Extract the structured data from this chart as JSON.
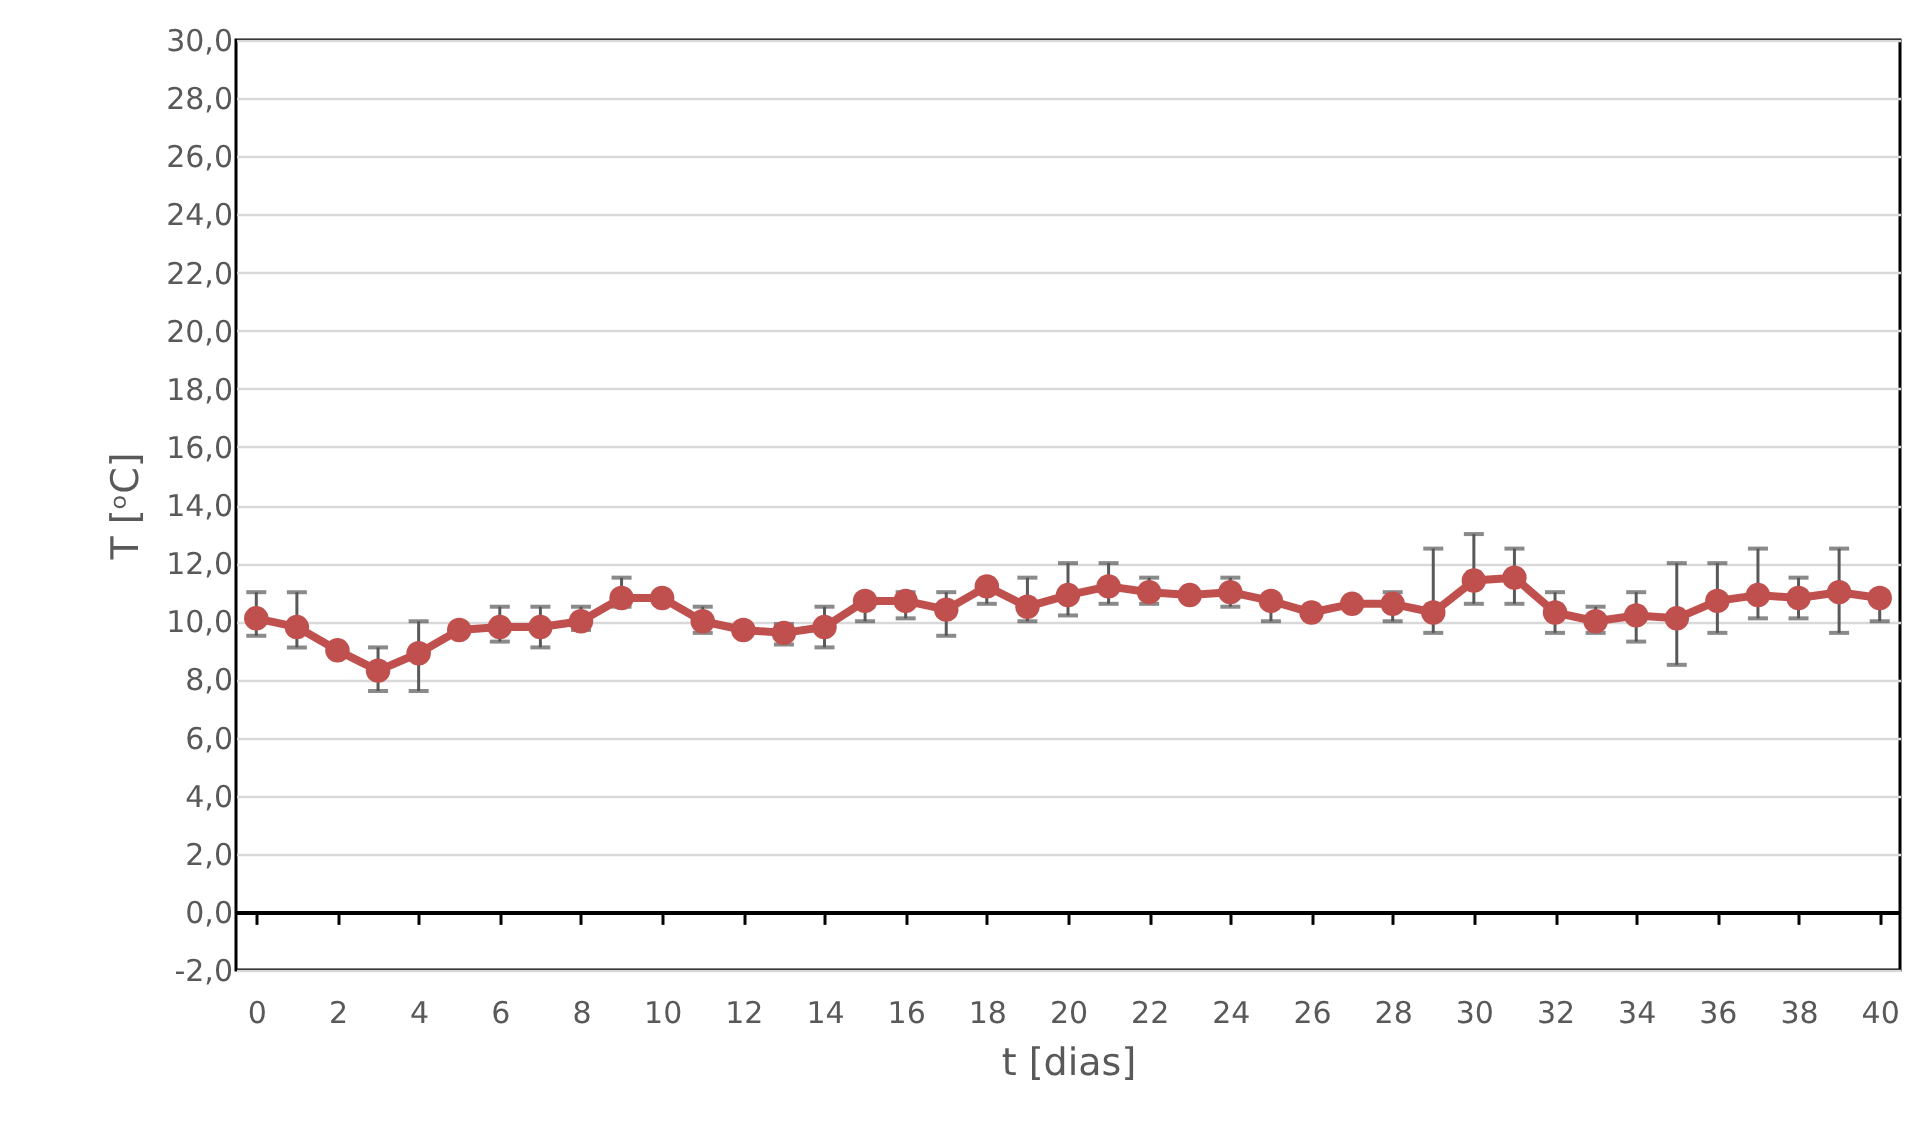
{
  "chart_data": {
    "type": "line",
    "xlabel": "t [dias]",
    "ylabel": "T [ᵒC]",
    "x": [
      0,
      1,
      2,
      3,
      4,
      5,
      6,
      7,
      8,
      9,
      10,
      11,
      12,
      13,
      14,
      15,
      16,
      17,
      18,
      19,
      20,
      21,
      22,
      23,
      24,
      25,
      26,
      27,
      28,
      29,
      30,
      31,
      32,
      33,
      34,
      35,
      36,
      37,
      38,
      39,
      40
    ],
    "series": [
      {
        "color": "#c0504d",
        "values": [
          10.1,
          9.8,
          9.0,
          8.3,
          8.9,
          9.7,
          9.8,
          9.8,
          10.0,
          10.8,
          10.8,
          10.0,
          9.7,
          9.6,
          9.8,
          10.7,
          10.7,
          10.4,
          11.2,
          10.5,
          10.9,
          11.2,
          11.0,
          10.9,
          11.0,
          10.7,
          10.3,
          10.6,
          10.6,
          10.3,
          11.4,
          11.5,
          10.3,
          10.0,
          10.2,
          10.1,
          10.7,
          10.9,
          10.8,
          11.0,
          10.8
        ],
        "errors": [
          [
            9.5,
            11.0
          ],
          [
            9.1,
            11.0
          ],
          null,
          [
            7.6,
            9.1
          ],
          [
            7.6,
            10.0
          ],
          null,
          [
            9.3,
            10.5
          ],
          [
            9.1,
            10.5
          ],
          [
            9.7,
            10.5
          ],
          [
            10.5,
            11.5
          ],
          null,
          [
            9.6,
            10.5
          ],
          null,
          [
            9.2,
            9.9
          ],
          [
            9.1,
            10.5
          ],
          [
            10.0,
            10.5
          ],
          [
            10.1,
            11.0
          ],
          [
            9.5,
            11.0
          ],
          [
            10.6,
            11.2
          ],
          [
            10.0,
            11.5
          ],
          [
            10.2,
            12.0
          ],
          [
            10.6,
            12.0
          ],
          [
            10.6,
            11.5
          ],
          null,
          [
            10.5,
            11.5
          ],
          [
            10.0,
            10.7
          ],
          null,
          null,
          [
            10.0,
            11.0
          ],
          [
            9.6,
            12.5
          ],
          [
            10.6,
            13.0
          ],
          [
            10.6,
            12.5
          ],
          [
            9.6,
            11.0
          ],
          [
            9.6,
            10.5
          ],
          [
            9.3,
            11.0
          ],
          [
            8.5,
            12.0
          ],
          [
            9.6,
            12.0
          ],
          [
            10.1,
            12.5
          ],
          [
            10.1,
            11.5
          ],
          [
            9.6,
            12.5
          ],
          [
            10.0,
            11.0
          ]
        ]
      }
    ],
    "xlim": [
      -0.5,
      40.5
    ],
    "xticks": [
      0,
      2,
      4,
      6,
      8,
      10,
      12,
      14,
      16,
      18,
      20,
      22,
      24,
      26,
      28,
      30,
      32,
      34,
      36,
      38,
      40
    ],
    "ylim": [
      -2,
      30
    ],
    "yticks": [
      {
        "value": -2,
        "label": "-2,0"
      },
      {
        "value": 0,
        "label": "0,0"
      },
      {
        "value": 2,
        "label": "2,0"
      },
      {
        "value": 4,
        "label": "4,0"
      },
      {
        "value": 6,
        "label": "6,0"
      },
      {
        "value": 8,
        "label": "8,0"
      },
      {
        "value": 10,
        "label": "10,0"
      },
      {
        "value": 12,
        "label": "12,0"
      },
      {
        "value": 14,
        "label": "14,0"
      },
      {
        "value": 16,
        "label": "16,0"
      },
      {
        "value": 18,
        "label": "18,0"
      },
      {
        "value": 20,
        "label": "20,0"
      },
      {
        "value": 22,
        "label": "22,0"
      },
      {
        "value": 24,
        "label": "24,0"
      },
      {
        "value": 26,
        "label": "26,0"
      },
      {
        "value": 28,
        "label": "28,0"
      },
      {
        "value": 30,
        "label": "30,0"
      }
    ],
    "grid": "y",
    "marker": "circle",
    "line_style": "solid"
  }
}
